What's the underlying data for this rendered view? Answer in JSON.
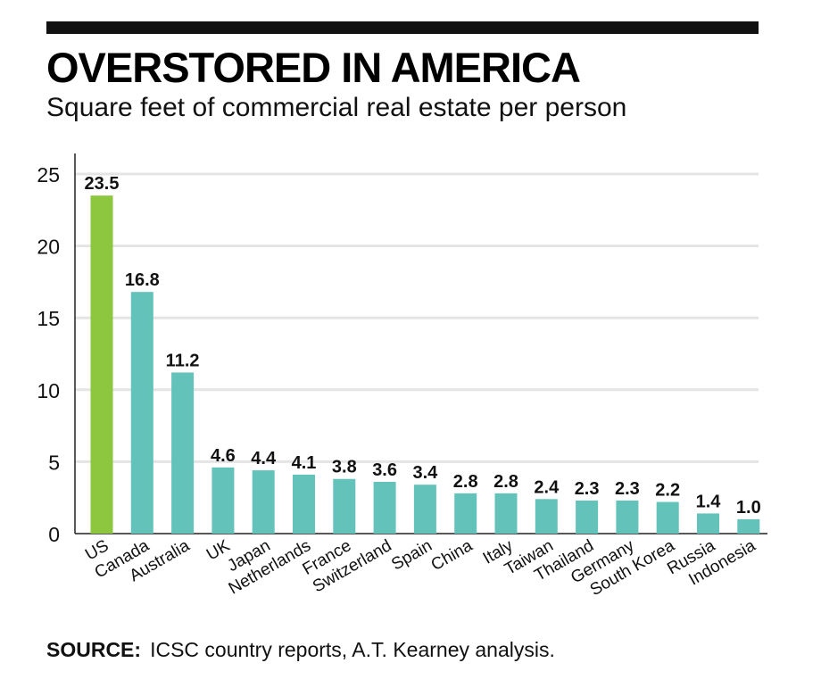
{
  "header": {
    "title": "OVERSTORED IN AMERICA",
    "subtitle": "Square feet of commercial real estate per person"
  },
  "footer": {
    "source_label": "SOURCE:",
    "source_text": "ICSC country reports, A.T. Kearney analysis."
  },
  "colors": {
    "highlight": "#8dc63f",
    "bar": "#63c3bb",
    "grid": "#e4e4e4",
    "axis": "#222222",
    "text": "#111111"
  },
  "chart_data": {
    "type": "bar",
    "title": "OVERSTORED IN AMERICA",
    "subtitle": "Square feet of commercial real estate per person",
    "xlabel": "",
    "ylabel": "",
    "ylim": [
      0,
      25
    ],
    "yticks": [
      0,
      5,
      10,
      15,
      20,
      25
    ],
    "grid": true,
    "legend": "none",
    "categories": [
      "US",
      "Canada",
      "Australia",
      "UK",
      "Japan",
      "Netherlands",
      "France",
      "Switzerland",
      "Spain",
      "China",
      "Italy",
      "Taiwan",
      "Thailand",
      "Germany",
      "South Korea",
      "Russia",
      "Indonesia"
    ],
    "values": [
      23.5,
      16.8,
      11.2,
      4.6,
      4.4,
      4.1,
      3.8,
      3.6,
      3.4,
      2.8,
      2.8,
      2.4,
      2.3,
      2.3,
      2.2,
      1.4,
      1.0
    ],
    "value_labels": [
      "23.5",
      "16.8",
      "11.2",
      "4.6",
      "4.4",
      "4.1",
      "3.8",
      "3.6",
      "3.4",
      "2.8",
      "2.8",
      "2.4",
      "2.3",
      "2.3",
      "2.2",
      "1.4",
      "1.0"
    ],
    "highlight_category": "US"
  }
}
